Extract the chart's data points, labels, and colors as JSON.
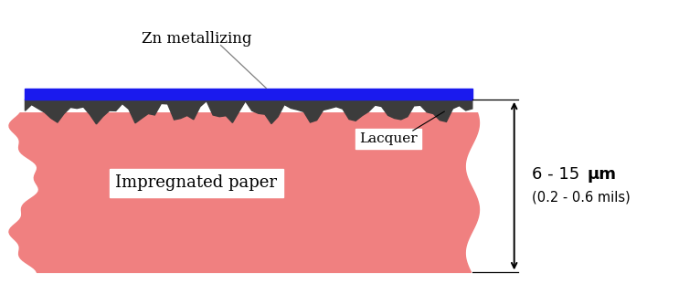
{
  "bg_color": "#ffffff",
  "paper_color": "#f08080",
  "lacquer_color": "#3c3c3c",
  "zn_color": "#1a1aee",
  "arrow_color": "#000000",
  "label_zn": "Zn metallizing",
  "label_lacquer": "Lacquer",
  "label_paper": "Impregnated paper",
  "figsize": [
    7.66,
    3.34
  ],
  "dpi": 100
}
